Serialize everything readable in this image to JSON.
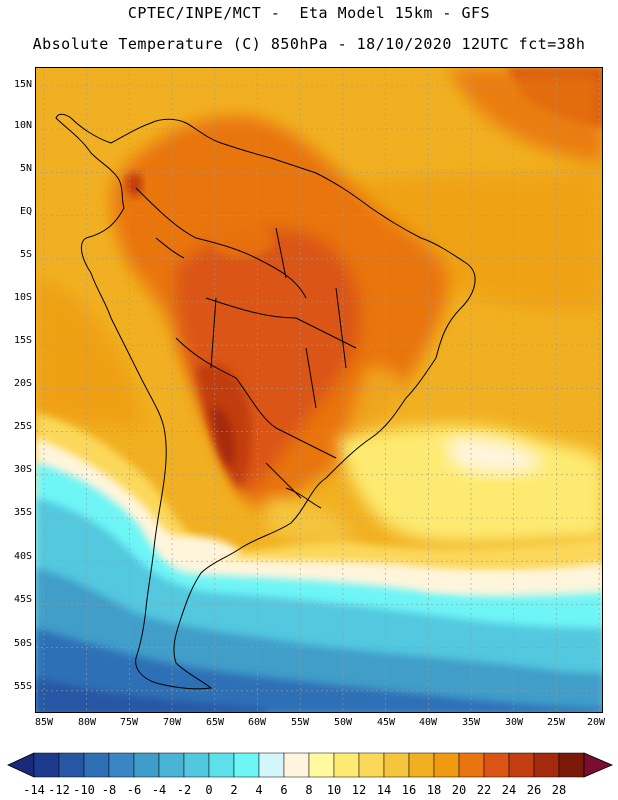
{
  "title_line1": "CPTEC/INPE/MCT -  Eta Model 15km - GFS",
  "title_line2": "Absolute Temperature (C) 850hPa - 18/10/2020 12UTC fct=38h",
  "map": {
    "variable": "Absolute Temperature (C) 850hPa",
    "lat_labels": [
      "15N",
      "10N",
      "5N",
      "EQ",
      "5S",
      "10S",
      "15S",
      "20S",
      "25S",
      "30S",
      "35S",
      "40S",
      "45S",
      "50S",
      "55S"
    ],
    "lon_labels": [
      "85W",
      "80W",
      "75W",
      "70W",
      "65W",
      "60W",
      "55W",
      "50W",
      "45W",
      "40W",
      "35W",
      "30W",
      "25W",
      "20W"
    ]
  },
  "colorbar": {
    "labels": [
      "-14",
      "-12",
      "-10",
      "-8",
      "-6",
      "-4",
      "-2",
      "0",
      "2",
      "4",
      "6",
      "8",
      "10",
      "12",
      "14",
      "16",
      "18",
      "20",
      "22",
      "24",
      "26",
      "28"
    ],
    "colors": [
      "#1c3b8f",
      "#2757a4",
      "#2e6fb6",
      "#3a86c4",
      "#3f9ec9",
      "#49b4d6",
      "#52c8df",
      "#5ee0ea",
      "#6ef5f6",
      "#d3f6fb",
      "#fff5dc",
      "#fffaa0",
      "#fdeb71",
      "#fbd85a",
      "#f5c53d",
      "#f1b021",
      "#ef9a10",
      "#e97511",
      "#da5413",
      "#c23d10",
      "#a32a0d",
      "#7c1a0a"
    ],
    "under_color": "#1a2a7a",
    "over_color": "#7a0e30"
  },
  "colors": {
    "contour_grid": "#9a9a9a",
    "coastline": "#000000"
  }
}
